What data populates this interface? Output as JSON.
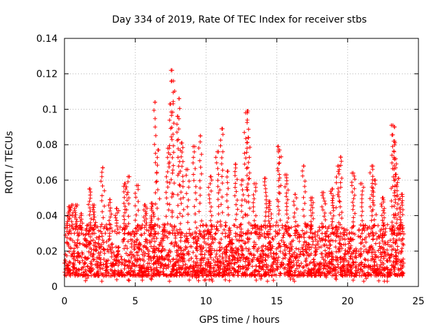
{
  "chart_data": {
    "type": "scatter",
    "title": "Day 334 of 2019, Rate Of TEC Index for receiver stbs",
    "xlabel": "GPS time / hours",
    "ylabel": "ROTI / TECUs",
    "xlim": [
      0,
      25
    ],
    "ylim": [
      0,
      0.14
    ],
    "grid": true,
    "marker": "+",
    "color": "#ff0000",
    "x_ticks": [
      "0",
      "5",
      "10",
      "15",
      "20",
      "25"
    ],
    "y_ticks": [
      "0",
      "0.02",
      "0.04",
      "0.06",
      "0.08",
      "0.1",
      "0.12",
      "0.14"
    ],
    "base_band": {
      "x_range": [
        0,
        24
      ],
      "typical_min": 0.006,
      "typical_max": 0.035,
      "points": 2600
    },
    "peaks": [
      {
        "x": 0.3,
        "y": 0.045
      },
      {
        "x": 0.5,
        "y": 0.046
      },
      {
        "x": 0.8,
        "y": 0.046
      },
      {
        "x": 1.2,
        "y": 0.041
      },
      {
        "x": 1.8,
        "y": 0.055
      },
      {
        "x": 2.1,
        "y": 0.046
      },
      {
        "x": 2.7,
        "y": 0.067
      },
      {
        "x": 3.2,
        "y": 0.049
      },
      {
        "x": 3.7,
        "y": 0.044
      },
      {
        "x": 4.3,
        "y": 0.058
      },
      {
        "x": 4.5,
        "y": 0.062
      },
      {
        "x": 5.1,
        "y": 0.057
      },
      {
        "x": 5.7,
        "y": 0.046
      },
      {
        "x": 6.2,
        "y": 0.047
      },
      {
        "x": 6.4,
        "y": 0.104
      },
      {
        "x": 6.6,
        "y": 0.077
      },
      {
        "x": 7.3,
        "y": 0.078
      },
      {
        "x": 7.5,
        "y": 0.103
      },
      {
        "x": 7.6,
        "y": 0.122
      },
      {
        "x": 7.7,
        "y": 0.116
      },
      {
        "x": 8.0,
        "y": 0.096
      },
      {
        "x": 8.1,
        "y": 0.106
      },
      {
        "x": 8.3,
        "y": 0.081
      },
      {
        "x": 8.7,
        "y": 0.066
      },
      {
        "x": 9.2,
        "y": 0.079
      },
      {
        "x": 9.6,
        "y": 0.085
      },
      {
        "x": 10.3,
        "y": 0.062
      },
      {
        "x": 10.8,
        "y": 0.076
      },
      {
        "x": 11.1,
        "y": 0.089
      },
      {
        "x": 11.5,
        "y": 0.065
      },
      {
        "x": 12.1,
        "y": 0.069
      },
      {
        "x": 12.6,
        "y": 0.06
      },
      {
        "x": 12.8,
        "y": 0.098
      },
      {
        "x": 12.9,
        "y": 0.099
      },
      {
        "x": 13.0,
        "y": 0.084
      },
      {
        "x": 13.4,
        "y": 0.058
      },
      {
        "x": 14.2,
        "y": 0.061
      },
      {
        "x": 14.5,
        "y": 0.048
      },
      {
        "x": 15.1,
        "y": 0.079
      },
      {
        "x": 15.2,
        "y": 0.077
      },
      {
        "x": 15.7,
        "y": 0.063
      },
      {
        "x": 16.3,
        "y": 0.052
      },
      {
        "x": 16.9,
        "y": 0.068
      },
      {
        "x": 17.5,
        "y": 0.05
      },
      {
        "x": 18.3,
        "y": 0.053
      },
      {
        "x": 18.9,
        "y": 0.055
      },
      {
        "x": 19.3,
        "y": 0.068
      },
      {
        "x": 19.5,
        "y": 0.073
      },
      {
        "x": 20.4,
        "y": 0.064
      },
      {
        "x": 21.0,
        "y": 0.058
      },
      {
        "x": 21.7,
        "y": 0.068
      },
      {
        "x": 21.9,
        "y": 0.06
      },
      {
        "x": 22.5,
        "y": 0.05
      },
      {
        "x": 23.2,
        "y": 0.091
      },
      {
        "x": 23.3,
        "y": 0.09
      },
      {
        "x": 23.25,
        "y": 0.082
      },
      {
        "x": 23.4,
        "y": 0.072
      },
      {
        "x": 23.6,
        "y": 0.061
      },
      {
        "x": 23.8,
        "y": 0.052
      }
    ]
  }
}
